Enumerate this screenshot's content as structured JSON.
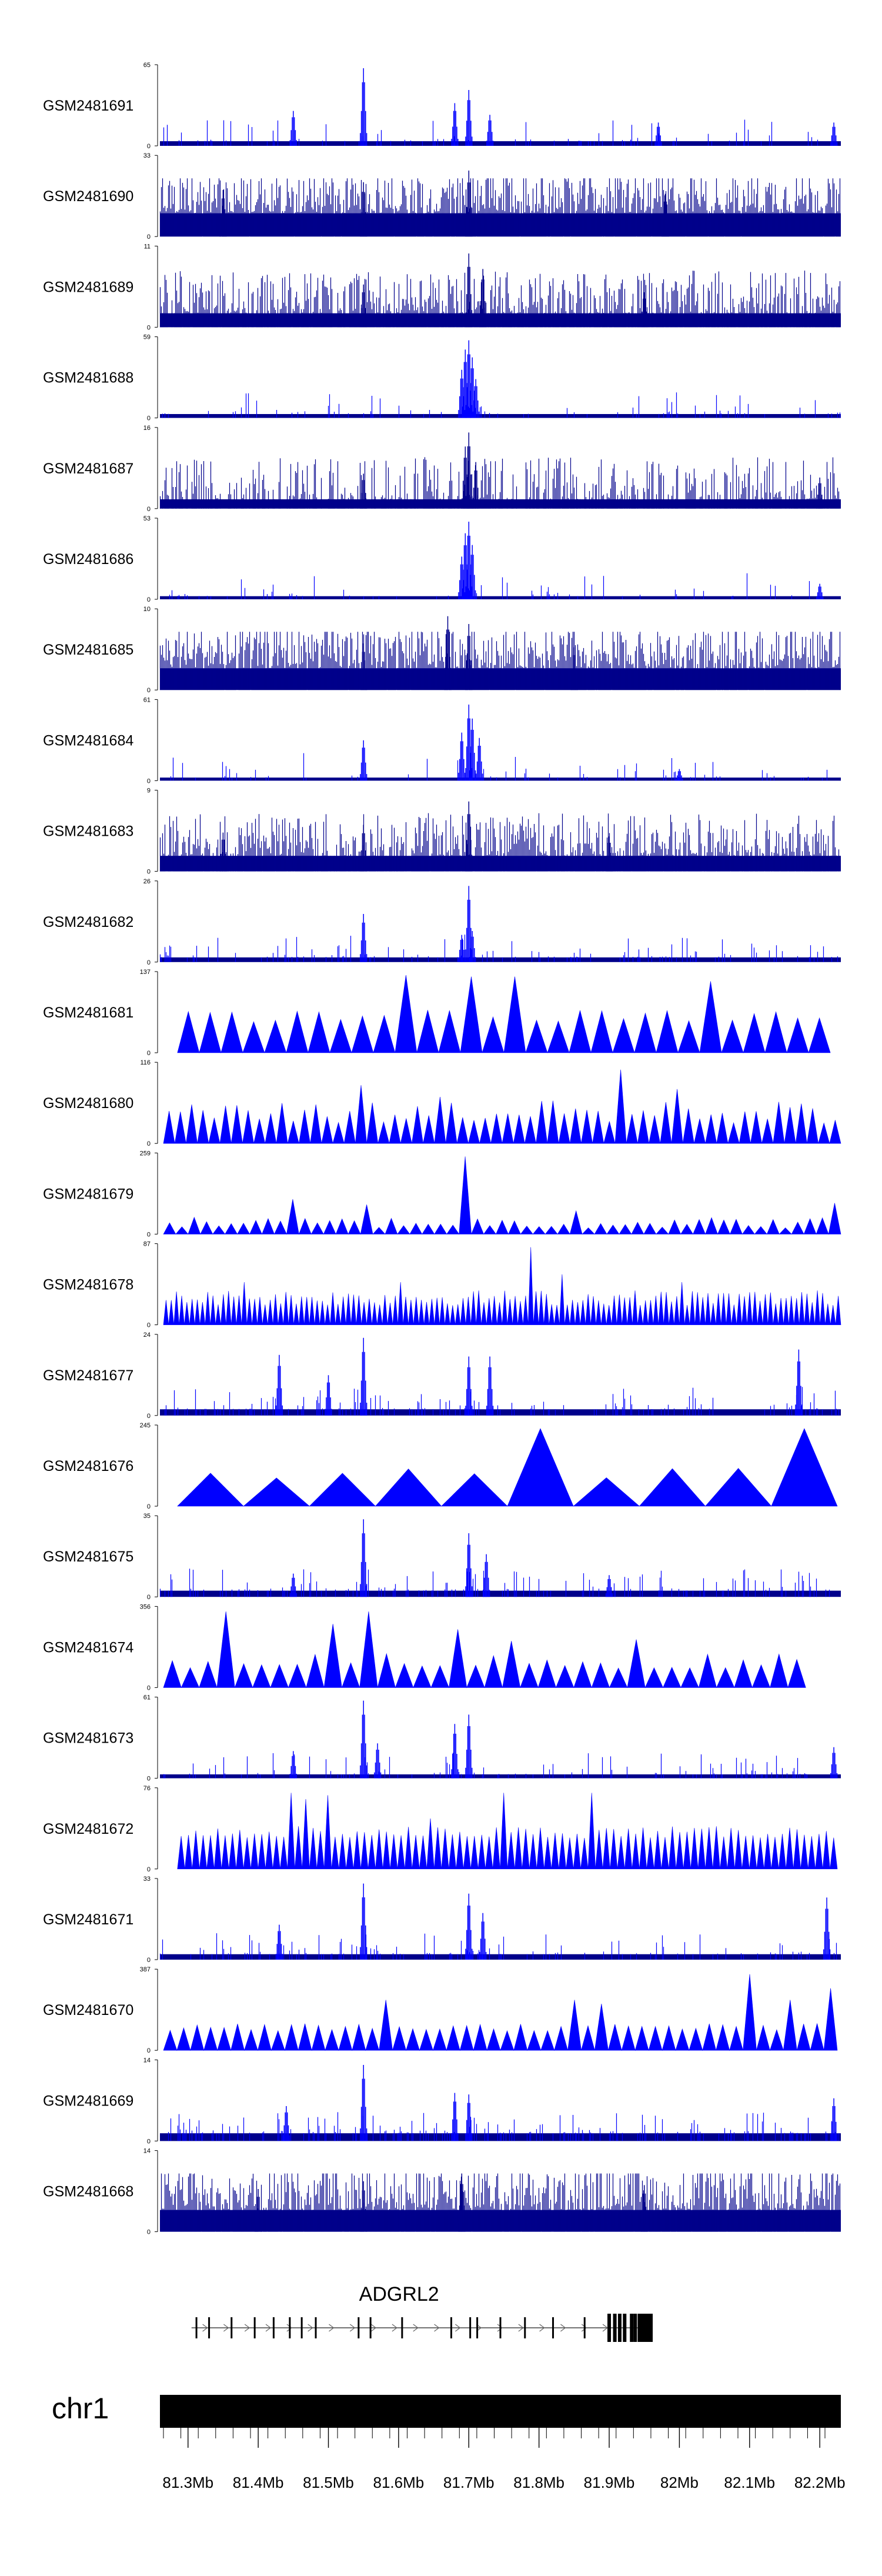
{
  "chart_data": {
    "type": "area",
    "title": "",
    "x_range_mb": [
      81.26,
      82.23
    ],
    "tracks": [
      {
        "label": "GSM2481691",
        "ymax": 65,
        "style": "bars",
        "density": 0.15,
        "base": 0.06,
        "peaks": [
          [
            81.55,
            1.0
          ],
          [
            81.7,
            0.72
          ],
          [
            81.68,
            0.55
          ],
          [
            81.45,
            0.45
          ],
          [
            81.73,
            0.4
          ],
          [
            81.97,
            0.3
          ],
          [
            82.22,
            0.3
          ]
        ]
      },
      {
        "label": "GSM2481690",
        "ymax": 33,
        "style": "dense",
        "density": 0.95,
        "base": 0.3,
        "peaks": [
          [
            81.7,
            0.85
          ],
          [
            81.55,
            0.7
          ],
          [
            81.35,
            0.6
          ],
          [
            81.98,
            0.55
          ]
        ]
      },
      {
        "label": "GSM2481689",
        "ymax": 11,
        "style": "dense",
        "density": 0.8,
        "base": 0.18,
        "peaks": [
          [
            81.7,
            0.95
          ],
          [
            81.72,
            0.75
          ],
          [
            81.55,
            0.55
          ],
          [
            81.95,
            0.45
          ]
        ]
      },
      {
        "label": "GSM2481688",
        "ymax": 59,
        "style": "bars",
        "density": 0.1,
        "base": 0.05,
        "peaks": [
          [
            81.7,
            1.0
          ],
          [
            81.695,
            0.88
          ],
          [
            81.705,
            0.78
          ],
          [
            81.69,
            0.62
          ],
          [
            81.71,
            0.5
          ]
        ]
      },
      {
        "label": "GSM2481687",
        "ymax": 16,
        "style": "dense",
        "density": 0.6,
        "base": 0.12,
        "peaks": [
          [
            81.7,
            0.98
          ],
          [
            81.695,
            0.8
          ],
          [
            81.71,
            0.6
          ],
          [
            81.55,
            0.45
          ],
          [
            82.2,
            0.4
          ]
        ]
      },
      {
        "label": "GSM2481686",
        "ymax": 53,
        "style": "bars",
        "density": 0.1,
        "base": 0.04,
        "peaks": [
          [
            81.7,
            1.0
          ],
          [
            81.695,
            0.85
          ],
          [
            81.705,
            0.7
          ],
          [
            81.69,
            0.55
          ],
          [
            82.2,
            0.2
          ]
        ]
      },
      {
        "label": "GSM2481685",
        "ymax": 10,
        "style": "dense",
        "density": 0.95,
        "base": 0.28,
        "peaks": [
          [
            81.67,
            0.95
          ],
          [
            81.7,
            0.85
          ],
          [
            81.55,
            0.6
          ],
          [
            81.85,
            0.55
          ]
        ]
      },
      {
        "label": "GSM2481684",
        "ymax": 61,
        "style": "bars",
        "density": 0.1,
        "base": 0.04,
        "peaks": [
          [
            81.7,
            0.98
          ],
          [
            81.705,
            0.8
          ],
          [
            81.69,
            0.62
          ],
          [
            81.715,
            0.55
          ],
          [
            81.55,
            0.52
          ],
          [
            82.0,
            0.15
          ]
        ]
      },
      {
        "label": "GSM2481683",
        "ymax": 9,
        "style": "dense",
        "density": 0.8,
        "base": 0.2,
        "peaks": [
          [
            81.7,
            0.9
          ],
          [
            81.55,
            0.6
          ],
          [
            81.35,
            0.5
          ],
          [
            81.9,
            0.45
          ]
        ]
      },
      {
        "label": "GSM2481682",
        "ymax": 26,
        "style": "bars",
        "density": 0.2,
        "base": 0.06,
        "peaks": [
          [
            81.7,
            0.98
          ],
          [
            81.55,
            0.62
          ],
          [
            81.705,
            0.4
          ],
          [
            81.69,
            0.35
          ]
        ]
      },
      {
        "label": "GSM2481681",
        "ymax": 137,
        "style": "spikes",
        "n": 30,
        "hmin": 0.4,
        "hmax": 0.55,
        "start_mb": 81.285,
        "end_mb": 82.215,
        "bigs": [
          [
            81.6,
            1.0
          ],
          [
            81.645,
            0.55
          ],
          [
            81.7,
            0.98
          ],
          [
            81.765,
            0.98
          ],
          [
            82.04,
            0.92
          ]
        ]
      },
      {
        "label": "GSM2481680",
        "ymax": 116,
        "style": "spikes",
        "n": 60,
        "hmin": 0.25,
        "hmax": 0.55,
        "start_mb": 81.265,
        "end_mb": 82.23,
        "bigs": [
          [
            81.55,
            0.75
          ],
          [
            81.66,
            0.6
          ],
          [
            81.92,
            0.95
          ],
          [
            81.82,
            0.55
          ],
          [
            82.0,
            0.7
          ]
        ]
      },
      {
        "label": "GSM2481679",
        "ymax": 259,
        "style": "spikes",
        "n": 55,
        "hmin": 0.08,
        "hmax": 0.22,
        "start_mb": 81.265,
        "end_mb": 82.23,
        "bigs": [
          [
            81.7,
            1.0
          ],
          [
            81.45,
            0.45
          ],
          [
            81.56,
            0.38
          ],
          [
            81.86,
            0.3
          ],
          [
            82.22,
            0.4
          ]
        ]
      },
      {
        "label": "GSM2481678",
        "ymax": 87,
        "style": "spikes",
        "n": 130,
        "hmin": 0.25,
        "hmax": 0.45,
        "start_mb": 81.265,
        "end_mb": 82.23,
        "bigs": [
          [
            81.79,
            1.0
          ],
          [
            81.83,
            0.65
          ],
          [
            81.6,
            0.55
          ],
          [
            81.38,
            0.55
          ],
          [
            82.0,
            0.55
          ]
        ]
      },
      {
        "label": "GSM2481677",
        "ymax": 24,
        "style": "bars",
        "density": 0.25,
        "base": 0.08,
        "peaks": [
          [
            81.55,
            1.0
          ],
          [
            81.43,
            0.78
          ],
          [
            81.7,
            0.76
          ],
          [
            81.73,
            0.76
          ],
          [
            81.5,
            0.52
          ],
          [
            82.17,
            0.85
          ]
        ]
      },
      {
        "label": "GSM2481676",
        "ymax": 245,
        "style": "spikes",
        "n": 10,
        "hmin": 0.35,
        "hmax": 0.5,
        "start_mb": 81.285,
        "end_mb": 82.225,
        "bigs": [
          [
            81.795,
            1.0
          ],
          [
            82.15,
            1.0
          ],
          [
            81.585,
            0.45
          ],
          [
            81.61,
            0.48
          ]
        ]
      },
      {
        "label": "GSM2481675",
        "ymax": 35,
        "style": "bars",
        "density": 0.25,
        "base": 0.08,
        "peaks": [
          [
            81.55,
            1.0
          ],
          [
            81.7,
            0.82
          ],
          [
            81.725,
            0.55
          ],
          [
            81.45,
            0.3
          ],
          [
            81.9,
            0.28
          ]
        ]
      },
      {
        "label": "GSM2481674",
        "ymax": 356,
        "style": "spikes",
        "n": 36,
        "hmin": 0.25,
        "hmax": 0.45,
        "start_mb": 81.265,
        "end_mb": 82.18,
        "bigs": [
          [
            81.345,
            0.98
          ],
          [
            81.545,
            0.98
          ],
          [
            81.5,
            0.82
          ],
          [
            81.69,
            0.75
          ],
          [
            81.76,
            0.6
          ],
          [
            81.94,
            0.62
          ]
        ]
      },
      {
        "label": "GSM2481673",
        "ymax": 61,
        "style": "bars",
        "density": 0.15,
        "base": 0.05,
        "peaks": [
          [
            81.55,
            1.0
          ],
          [
            81.7,
            0.82
          ],
          [
            81.68,
            0.7
          ],
          [
            81.45,
            0.35
          ],
          [
            81.57,
            0.45
          ],
          [
            82.22,
            0.4
          ]
        ]
      },
      {
        "label": "GSM2481672",
        "ymax": 76,
        "style": "spikes",
        "n": 90,
        "hmin": 0.4,
        "hmax": 0.55,
        "start_mb": 81.285,
        "end_mb": 82.225,
        "bigs": [
          [
            81.45,
            0.98
          ],
          [
            81.47,
            0.9
          ],
          [
            81.5,
            0.95
          ],
          [
            81.75,
            0.98
          ],
          [
            81.88,
            0.98
          ],
          [
            81.65,
            0.65
          ]
        ]
      },
      {
        "label": "GSM2481671",
        "ymax": 33,
        "style": "bars",
        "density": 0.2,
        "base": 0.07,
        "peaks": [
          [
            81.55,
            0.98
          ],
          [
            81.7,
            0.85
          ],
          [
            81.72,
            0.6
          ],
          [
            81.43,
            0.45
          ],
          [
            82.21,
            0.8
          ]
        ]
      },
      {
        "label": "GSM2481670",
        "ymax": 387,
        "style": "spikes",
        "n": 50,
        "hmin": 0.25,
        "hmax": 0.35,
        "start_mb": 81.265,
        "end_mb": 82.225,
        "bigs": [
          [
            82.1,
            0.98
          ],
          [
            81.59,
            0.65
          ],
          [
            81.85,
            0.65
          ],
          [
            81.89,
            0.6
          ],
          [
            82.15,
            0.65
          ],
          [
            82.21,
            0.8
          ]
        ]
      },
      {
        "label": "GSM2481669",
        "ymax": 14,
        "style": "bars",
        "density": 0.3,
        "base": 0.1,
        "peaks": [
          [
            81.55,
            0.98
          ],
          [
            81.68,
            0.62
          ],
          [
            81.7,
            0.6
          ],
          [
            81.44,
            0.45
          ],
          [
            82.22,
            0.55
          ]
        ]
      },
      {
        "label": "GSM2481668",
        "ymax": 14,
        "style": "dense",
        "density": 0.9,
        "base": 0.28,
        "peaks": [
          [
            81.69,
            0.75
          ],
          [
            81.55,
            0.65
          ],
          [
            81.95,
            0.6
          ],
          [
            81.4,
            0.55
          ]
        ]
      }
    ],
    "gene": {
      "name": "ADGRL2",
      "start_mb": 81.305,
      "end_mb": 81.96,
      "exons_mb": [
        81.312,
        81.33,
        81.362,
        81.395,
        81.422,
        81.445,
        81.462,
        81.482,
        81.543,
        81.56,
        81.605,
        81.675,
        81.702,
        81.712,
        81.745,
        81.78,
        81.82,
        81.865,
        81.9,
        81.908,
        81.915,
        81.922,
        81.932,
        81.937,
        81.943,
        81.95,
        81.955
      ],
      "strand": "+"
    },
    "chromosome": "chr1",
    "x_ticks": [
      "81.3Mb",
      "81.4Mb",
      "81.5Mb",
      "81.6Mb",
      "81.7Mb",
      "81.8Mb",
      "81.9Mb",
      "82Mb",
      "82.1Mb",
      "82.2Mb"
    ],
    "x_tick_values_mb": [
      81.3,
      81.4,
      81.5,
      81.6,
      81.7,
      81.8,
      81.9,
      82.0,
      82.1,
      82.2
    ],
    "colors": {
      "signal": "#0000ff",
      "dense": "#00008b",
      "axis": "#000000"
    }
  }
}
